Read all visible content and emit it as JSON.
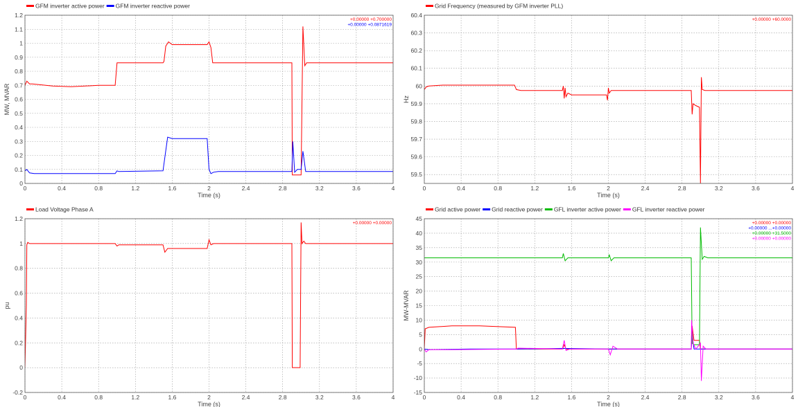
{
  "chart_data": [
    {
      "type": "line",
      "id": "p1",
      "xlabel": "Time (s)",
      "ylabel": "MW, MVAR",
      "xlim": [
        0,
        4
      ],
      "ylim": [
        0,
        1.2
      ],
      "xticks": [
        "0",
        "0.4",
        "0.8",
        "1.2",
        "1.6",
        "2",
        "2.4",
        "2.8",
        "3.2",
        "3.6",
        "4"
      ],
      "yticks": [
        "0",
        "0.1",
        "0.2",
        "0.3",
        "0.4",
        "0.5",
        "0.6",
        "0.7",
        "0.8",
        "0.9",
        "1",
        "1.1",
        "1.2"
      ],
      "grid": true,
      "legend_position": "top-left",
      "readouts": [
        "+0.00000  +0.700000",
        "+0.00000  +0.0871619"
      ],
      "series": [
        {
          "name": "GFM inverter active power",
          "color": "#ff0000",
          "x": [
            0,
            0.02,
            0.05,
            0.08,
            0.3,
            0.5,
            0.8,
            0.98,
            1.0,
            1.02,
            1.5,
            1.51,
            1.53,
            1.56,
            1.6,
            1.98,
            2.0,
            2.02,
            2.04,
            2.1,
            2.9,
            2.905,
            3.0,
            3.02,
            3.04,
            3.06,
            3.1,
            4.0
          ],
          "y": [
            0.7,
            0.73,
            0.71,
            0.71,
            0.695,
            0.69,
            0.7,
            0.7,
            0.86,
            0.86,
            0.86,
            0.87,
            0.98,
            1.01,
            0.99,
            0.99,
            1.01,
            0.97,
            0.86,
            0.86,
            0.86,
            0.06,
            0.06,
            1.12,
            0.84,
            0.86,
            0.86,
            0.86
          ]
        },
        {
          "name": "GFM inverter reactive power",
          "color": "#0000ff",
          "x": [
            0,
            0.02,
            0.05,
            0.1,
            0.3,
            0.98,
            1.0,
            1.02,
            1.5,
            1.55,
            1.6,
            1.98,
            2.0,
            2.02,
            2.05,
            2.1,
            2.9,
            2.91,
            2.93,
            2.96,
            3.0,
            3.02,
            3.05,
            3.1,
            4.0
          ],
          "y": [
            0.09,
            0.1,
            0.075,
            0.07,
            0.07,
            0.07,
            0.09,
            0.085,
            0.09,
            0.33,
            0.32,
            0.32,
            0.1,
            0.07,
            0.08,
            0.085,
            0.085,
            0.3,
            0.08,
            0.1,
            0.1,
            0.23,
            0.085,
            0.085,
            0.085
          ]
        }
      ]
    },
    {
      "type": "line",
      "id": "p2",
      "xlabel": "Time (s)",
      "ylabel": "Hz",
      "xlim": [
        0,
        4
      ],
      "ylim": [
        59.45,
        60.4
      ],
      "xticks": [
        "0",
        "0.4",
        "0.8",
        "1.2",
        "1.6",
        "2",
        "2.4",
        "2.8",
        "3.2",
        "3.6",
        "4"
      ],
      "yticks": [
        "59.5",
        "59.6",
        "59.7",
        "59.8",
        "59.9",
        "60",
        "60.1",
        "60.2",
        "60.3",
        "60.4"
      ],
      "grid": true,
      "legend_position": "top-left",
      "readouts": [
        "+0.00000  +60.0000"
      ],
      "series": [
        {
          "name": "Grid Frequency (measured by GFM inverter PLL)",
          "color": "#ff0000",
          "x": [
            0,
            0.02,
            0.05,
            0.2,
            0.5,
            0.98,
            1.0,
            1.05,
            1.5,
            1.51,
            1.52,
            1.53,
            1.54,
            1.56,
            1.6,
            1.98,
            1.99,
            2.0,
            2.01,
            2.03,
            2.1,
            2.9,
            2.91,
            2.92,
            2.95,
            2.99,
            3.0,
            3.01,
            3.02,
            3.05,
            4.0
          ],
          "y": [
            59.98,
            59.995,
            60.0,
            60.005,
            60.005,
            60.005,
            59.98,
            59.975,
            59.975,
            60.0,
            59.93,
            59.99,
            59.94,
            59.96,
            59.95,
            59.95,
            59.92,
            59.99,
            59.96,
            59.975,
            59.975,
            59.975,
            59.84,
            59.9,
            59.89,
            59.88,
            59.45,
            60.05,
            59.98,
            59.975,
            59.975
          ]
        }
      ]
    },
    {
      "type": "line",
      "id": "p3",
      "xlabel": "Time (s)",
      "ylabel": "pu",
      "xlim": [
        0,
        4
      ],
      "ylim": [
        -0.2,
        1.2
      ],
      "xticks": [
        "0",
        "0.4",
        "0.8",
        "1.2",
        "1.6",
        "2",
        "2.4",
        "2.8",
        "3.2",
        "3.6",
        "4"
      ],
      "yticks": [
        "-0.2",
        "0",
        "0.2",
        "0.4",
        "0.6",
        "0.8",
        "1",
        "1.2"
      ],
      "grid": true,
      "legend_position": "top-left",
      "readouts": [
        "+0.00000  +0.00000"
      ],
      "series": [
        {
          "name": "Load Voltage Phase A",
          "color": "#ff0000",
          "x": [
            0,
            0.015,
            0.02,
            0.03,
            0.05,
            0.5,
            0.98,
            1.0,
            1.02,
            1.5,
            1.52,
            1.55,
            1.6,
            1.98,
            2.0,
            2.02,
            2.05,
            2.1,
            2.9,
            2.905,
            2.99,
            3.0,
            3.01,
            3.03,
            3.05,
            4.0
          ],
          "y": [
            0,
            0.5,
            0.99,
            1.01,
            1.0,
            1.0,
            1.0,
            0.98,
            0.99,
            0.99,
            0.93,
            0.96,
            0.96,
            0.96,
            1.03,
            0.99,
            1.0,
            1.0,
            1.0,
            0.0,
            0.0,
            1.17,
            1.0,
            1.02,
            1.0,
            1.0
          ]
        }
      ]
    },
    {
      "type": "line",
      "id": "p4",
      "xlabel": "Time (s)",
      "ylabel": "MW-MVAR",
      "xlim": [
        0,
        4
      ],
      "ylim": [
        -15,
        45
      ],
      "xticks": [
        "0",
        "0.4",
        "0.8",
        "1.2",
        "1.6",
        "2",
        "2.4",
        "2.8",
        "3.2",
        "3.6",
        "4"
      ],
      "yticks": [
        "-15",
        "-10",
        "-5",
        "0",
        "5",
        "10",
        "15",
        "20",
        "25",
        "30",
        "35",
        "40",
        "45"
      ],
      "grid": true,
      "legend_position": "top-left",
      "readouts": [
        "+0.00000  +0.00000",
        "+0.00000  ...+0.00000",
        "+0.00000  +31.5000",
        "+0.00000  +0.00000"
      ],
      "series": [
        {
          "name": "Grid active power",
          "color": "#ff0000",
          "x": [
            0,
            0.01,
            0.05,
            0.3,
            0.6,
            0.99,
            1.0,
            1.01,
            1.5,
            1.52,
            1.54,
            2.0,
            2.02,
            2.9,
            2.91,
            2.93,
            2.99,
            3.0,
            3.01,
            3.05,
            4.0
          ],
          "y": [
            0,
            7,
            7.5,
            8,
            8,
            7.5,
            0,
            0,
            0,
            1.5,
            0,
            0,
            0,
            0,
            8,
            3,
            3,
            0,
            0,
            0,
            0
          ]
        },
        {
          "name": "Grid reactive power",
          "color": "#0000ff",
          "x": [
            0,
            0.05,
            0.5,
            1.0,
            1.5,
            2.0,
            2.9,
            2.91,
            2.93,
            3.0,
            3.02,
            4.0
          ],
          "y": [
            0,
            -0.2,
            0,
            0,
            0.2,
            0,
            0,
            5,
            0,
            0,
            0,
            0
          ]
        },
        {
          "name": "GFL inverter active power",
          "color": "#00bb00",
          "x": [
            0,
            1.5,
            1.51,
            1.53,
            1.56,
            2.0,
            2.01,
            2.03,
            2.06,
            2.9,
            2.91,
            2.93,
            2.99,
            3.0,
            3.02,
            3.04,
            3.08,
            4.0
          ],
          "y": [
            31.5,
            31.5,
            33,
            30.5,
            31.5,
            31.5,
            32.5,
            30.5,
            31.5,
            31.5,
            2,
            1.5,
            1.5,
            42,
            31,
            32,
            31.5,
            31.5
          ]
        },
        {
          "name": "GFL inverter reactive power",
          "color": "#ff00ff",
          "x": [
            0,
            0.02,
            0.05,
            0.3,
            1.0,
            1.02,
            1.5,
            1.52,
            1.54,
            1.58,
            2.0,
            2.02,
            2.05,
            2.1,
            2.9,
            2.905,
            2.92,
            2.95,
            3.0,
            3.01,
            3.03,
            3.06,
            4.0
          ],
          "y": [
            0,
            -1,
            -0.2,
            -0.2,
            0,
            0.3,
            0,
            3,
            -0.5,
            0,
            0,
            -2,
            1,
            0,
            0,
            10,
            2,
            0,
            2,
            -11,
            1,
            0,
            0
          ]
        }
      ]
    }
  ]
}
